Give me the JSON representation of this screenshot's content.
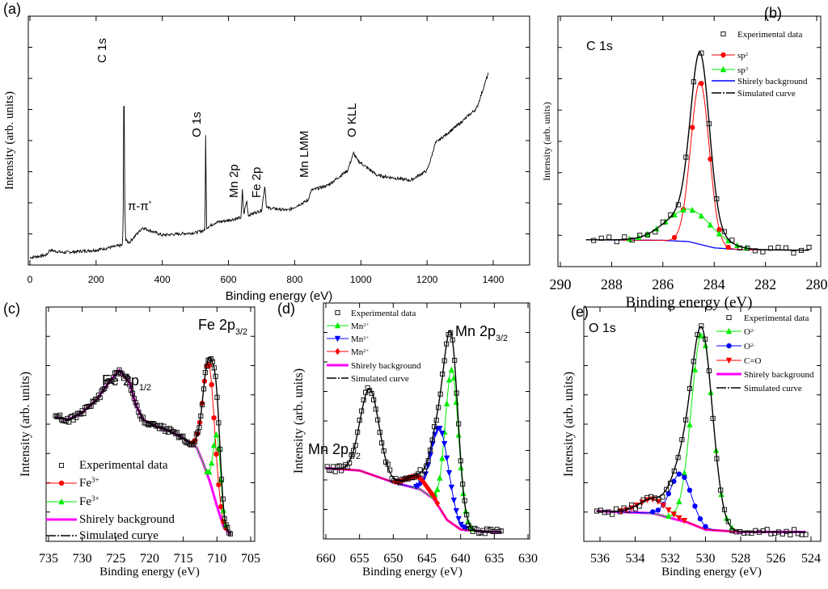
{
  "chart_data": [
    {
      "panel": "(a)",
      "type": "line",
      "xlabel": "Binding energy (eV)",
      "ylabel": "Intensity (arb. units)",
      "xlim": [
        0,
        1500
      ],
      "ylim": [
        0,
        1
      ],
      "xticks": [
        0,
        200,
        400,
        600,
        800,
        1000,
        1200,
        1400
      ],
      "annotations": [
        {
          "id": "c1s",
          "text": "C 1s",
          "sup": ""
        },
        {
          "id": "pipi",
          "text": "π-π",
          "sup": "*"
        },
        {
          "id": "o1s",
          "text": "O 1s",
          "sup": ""
        },
        {
          "id": "mn2p",
          "text": "Mn 2p",
          "sup": ""
        },
        {
          "id": "fe2p",
          "text": "Fe 2p",
          "sup": ""
        },
        {
          "id": "mnlmm",
          "text": "Mn LMM",
          "sup": ""
        },
        {
          "id": "okll",
          "text": "O KLL",
          "sup": ""
        }
      ],
      "series": [
        {
          "color": "#000000",
          "points": [
            [
              0,
              0.03
            ],
            [
              50,
              0.04
            ],
            [
              60,
              0.06
            ],
            [
              100,
              0.05
            ],
            [
              200,
              0.06
            ],
            [
              280,
              0.08
            ],
            [
              283,
              0.3
            ],
            [
              284,
              0.97
            ],
            [
              286,
              0.3
            ],
            [
              289,
              0.1
            ],
            [
              300,
              0.09
            ],
            [
              340,
              0.15
            ],
            [
              400,
              0.12
            ],
            [
              500,
              0.13
            ],
            [
              529,
              0.14
            ],
            [
              531,
              0.52
            ],
            [
              534,
              0.15
            ],
            [
              560,
              0.17
            ],
            [
              600,
              0.18
            ],
            [
              638,
              0.19
            ],
            [
              642,
              0.3
            ],
            [
              646,
              0.2
            ],
            [
              655,
              0.26
            ],
            [
              660,
              0.2
            ],
            [
              700,
              0.22
            ],
            [
              710,
              0.32
            ],
            [
              715,
              0.23
            ],
            [
              780,
              0.22
            ],
            [
              840,
              0.26
            ],
            [
              850,
              0.3
            ],
            [
              900,
              0.32
            ],
            [
              960,
              0.38
            ],
            [
              978,
              0.45
            ],
            [
              990,
              0.42
            ],
            [
              1050,
              0.36
            ],
            [
              1100,
              0.35
            ],
            [
              1150,
              0.34
            ],
            [
              1200,
              0.38
            ],
            [
              1210,
              0.42
            ],
            [
              1225,
              0.49
            ],
            [
              1300,
              0.57
            ],
            [
              1350,
              0.63
            ],
            [
              1385,
              0.77
            ]
          ]
        }
      ]
    },
    {
      "panel": "(b)",
      "type": "line",
      "title": {
        "text": "C 1s",
        "sub": ""
      },
      "xlabel": "Binding energy (eV)",
      "ylabel": "Intensity (arb. units)",
      "xlim": [
        290,
        280
      ],
      "ylim": [
        0,
        1
      ],
      "xticks": [
        290,
        288,
        286,
        284,
        282,
        280
      ],
      "exp_range": [
        289,
        280.3
      ],
      "background": {
        "color": "#0000ff",
        "points": [
          [
            290,
            0.108
          ],
          [
            286,
            0.105
          ],
          [
            285,
            0.1
          ],
          [
            284,
            0.075
          ],
          [
            283,
            0.068
          ],
          [
            280,
            0.065
          ]
        ]
      },
      "peaks": [
        {
          "label": "sp",
          "sup": "2",
          "color": "#ff0000",
          "marker": "circle",
          "center": 284.55,
          "height": 0.65,
          "sigma": 0.36
        },
        {
          "label": "sp",
          "sup": "3",
          "color": "#00ee00",
          "marker": "triangle",
          "center": 284.95,
          "height": 0.13,
          "sigma": 0.9
        }
      ],
      "legend": [
        {
          "label": "Experimental data",
          "sup": "",
          "kind": "square"
        },
        {
          "label": "sp",
          "sup": "2",
          "kind": "peak0"
        },
        {
          "label": "sp",
          "sup": "3",
          "kind": "peak1"
        },
        {
          "label": "Shirely background",
          "sup": "",
          "kind": "bg"
        },
        {
          "label": "Simulated curve",
          "sup": "",
          "kind": "sim"
        }
      ]
    },
    {
      "panel": "(c)",
      "type": "line",
      "xlabel": "Binding energy (eV)",
      "ylabel": "Intensity (arb. units)",
      "xlim": [
        735,
        705
      ],
      "ylim": [
        0,
        1
      ],
      "xticks": [
        735,
        730,
        725,
        720,
        715,
        710,
        705
      ],
      "exp_range": [
        734,
        708
      ],
      "annotations": [
        {
          "id": "fe2p12",
          "text": "Fe 2p",
          "sub": "1/2"
        },
        {
          "id": "fe2p32",
          "text": "Fe 2p",
          "sub": "3/2"
        }
      ],
      "background": {
        "color": "#ff00ff",
        "points": [
          [
            734,
            0.53
          ],
          [
            732,
            0.52
          ],
          [
            730,
            0.55
          ],
          [
            728,
            0.6
          ],
          [
            726,
            0.68
          ],
          [
            724.5,
            0.73
          ],
          [
            723,
            0.68
          ],
          [
            722,
            0.58
          ],
          [
            721,
            0.52
          ],
          [
            719,
            0.49
          ],
          [
            717,
            0.47
          ],
          [
            715,
            0.44
          ],
          [
            713,
            0.4
          ],
          [
            712,
            0.33
          ],
          [
            711,
            0.25
          ],
          [
            710,
            0.15
          ],
          [
            709,
            0.06
          ],
          [
            708,
            0.03
          ]
        ]
      },
      "peaks": [
        {
          "label": "Fe",
          "sup": "3+",
          "color": "#ff0000",
          "marker": "circle",
          "center": 711.2,
          "height": 0.49,
          "sigma": 0.85
        },
        {
          "label": "Fe",
          "sup": "3+",
          "color": "#00ee00",
          "marker": "triangle",
          "center": 710.0,
          "height": 0.3,
          "sigma": 0.55
        }
      ],
      "legend": [
        {
          "label": "Experimental data",
          "sup": "",
          "kind": "square"
        },
        {
          "label": "Fe",
          "sup": "3+",
          "kind": "peak0"
        },
        {
          "label": "Fe",
          "sup": "3+",
          "kind": "peak1"
        },
        {
          "label": "Shirely background",
          "sup": "",
          "kind": "bg"
        },
        {
          "label": "Simulated curve",
          "sup": "",
          "kind": "sim"
        }
      ]
    },
    {
      "panel": "(d)",
      "type": "line",
      "xlabel": "Binding energy (eV)",
      "ylabel": "Intensity (arb. units)",
      "xlim": [
        660,
        630
      ],
      "ylim": [
        0,
        1
      ],
      "xticks": [
        660,
        655,
        650,
        645,
        640,
        635,
        630
      ],
      "exp_range": [
        660,
        634
      ],
      "annotations": [
        {
          "id": "mn2p32",
          "text": "Mn 2p",
          "sub": "3/2"
        },
        {
          "id": "mn2p12",
          "text": "Mn 2p",
          "sub": "1/2"
        }
      ],
      "background": {
        "color": "#ff00ff",
        "points": [
          [
            660,
            0.3
          ],
          [
            655,
            0.29
          ],
          [
            650,
            0.24
          ],
          [
            646,
            0.21
          ],
          [
            644,
            0.17
          ],
          [
            642,
            0.08
          ],
          [
            640,
            0.04
          ],
          [
            636,
            0.03
          ],
          [
            634,
            0.03
          ]
        ]
      },
      "peaks": [
        {
          "label": "Mn",
          "sup": "2+",
          "color": "#00ee00",
          "marker": "triangle",
          "center": 641.3,
          "height": 0.65,
          "sigma": 1.0
        },
        {
          "label": "Mn",
          "sup": "2+",
          "color": "#0000ff",
          "marker": "triangle-down",
          "center": 643.0,
          "height": 0.34,
          "sigma": 1.3
        },
        {
          "label": "Mn",
          "sup": "2+",
          "color": "#ff0000",
          "marker": "diamond",
          "center": 646.5,
          "height": 0.05,
          "sigma": 1.5
        },
        {
          "label": "",
          "sup": "",
          "color": "none",
          "marker": "none",
          "center": 653.5,
          "height": 0.36,
          "sigma": 1.4
        }
      ],
      "legend": [
        {
          "label": "Experimental data",
          "sup": "",
          "kind": "square"
        },
        {
          "label": "Mn",
          "sup": "2+",
          "kind": "peak0"
        },
        {
          "label": "Mn",
          "sup": "2+",
          "kind": "peak1"
        },
        {
          "label": "Mn",
          "sup": "2+",
          "kind": "peak2"
        },
        {
          "label": "Shirely background",
          "sup": "",
          "kind": "bg"
        },
        {
          "label": "Simulated curve",
          "sup": "",
          "kind": "sim"
        }
      ]
    },
    {
      "panel": "(e)",
      "type": "line",
      "title": {
        "text": "O 1s",
        "sub": ""
      },
      "xlabel": "Binding energy (eV)",
      "ylabel": "Intensity (arb. units)",
      "xlim": [
        536.9,
        523.5
      ],
      "ylim": [
        0,
        1
      ],
      "xticks": [
        536,
        534,
        532,
        530,
        528,
        526,
        524
      ],
      "exp_range": [
        536.2,
        524.3
      ],
      "background": {
        "color": "#ff00ff",
        "points": [
          [
            536.5,
            0.13
          ],
          [
            533,
            0.12
          ],
          [
            531,
            0.08
          ],
          [
            530,
            0.05
          ],
          [
            528,
            0.04
          ],
          [
            524,
            0.04
          ]
        ]
      },
      "peaks": [
        {
          "label": "O",
          "sup": "2-",
          "color": "#00ee00",
          "marker": "triangle",
          "center": 530.2,
          "height": 0.83,
          "sigma": 0.6
        },
        {
          "label": "O",
          "sup": "2-",
          "color": "#0000ff",
          "marker": "circle",
          "center": 531.4,
          "height": 0.2,
          "sigma": 0.6
        },
        {
          "label": "C=O",
          "sup": "",
          "color": "#ff0000",
          "marker": "triangle-down",
          "center": 533.0,
          "height": 0.06,
          "sigma": 0.8
        }
      ],
      "legend": [
        {
          "label": "Experimental data",
          "sup": "",
          "kind": "square"
        },
        {
          "label": "O",
          "sup": "2-",
          "kind": "peak0"
        },
        {
          "label": "O",
          "sup": "2-",
          "kind": "peak1"
        },
        {
          "label": "C=O",
          "sup": "",
          "kind": "peak2"
        },
        {
          "label": "Shirely background",
          "sup": "",
          "kind": "bg"
        },
        {
          "label": "Simulated curve",
          "sup": "",
          "kind": "sim"
        }
      ]
    }
  ]
}
